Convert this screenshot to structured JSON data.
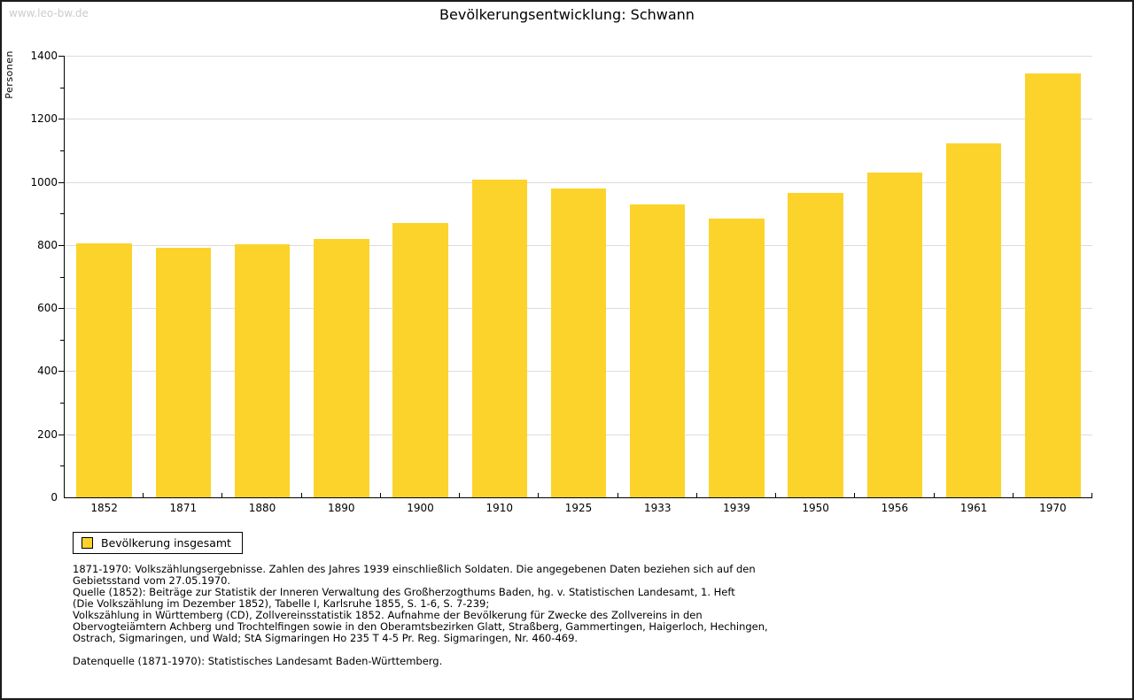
{
  "watermark": "www.leo-bw.de",
  "colors": {
    "bar_fill": "#fcd32b",
    "gridline": "#dcdcdc",
    "axis": "#000000",
    "watermark_text": "#cccccc"
  },
  "chart_data": {
    "type": "bar",
    "title": "Bevölkerungsentwicklung: Schwann",
    "ylabel": "Personen",
    "xlabel": "",
    "ylim": [
      0,
      1400
    ],
    "y_major_step": 200,
    "y_minor_step": 100,
    "grid": true,
    "legend_position": "bottom-left",
    "categories": [
      "1852",
      "1871",
      "1880",
      "1890",
      "1900",
      "1910",
      "1925",
      "1933",
      "1939",
      "1950",
      "1956",
      "1961",
      "1970"
    ],
    "series": [
      {
        "name": "Bevölkerung insgesamt",
        "color": "#fcd32b",
        "values": [
          806,
          792,
          803,
          819,
          870,
          1008,
          978,
          928,
          884,
          966,
          1031,
          1122,
          1345
        ]
      }
    ]
  },
  "footnotes": {
    "lines": [
      "1871-1970: Volkszählungsergebnisse. Zahlen des Jahres 1939 einschließlich Soldaten. Die angegebenen Daten beziehen sich auf den",
      "Gebietsstand vom 27.05.1970.",
      "Quelle (1852): Beiträge zur Statistik der Inneren Verwaltung des Großherzogthums Baden, hg. v. Statistischen Landesamt, 1. Heft",
      "(Die Volkszählung im Dezember 1852), Tabelle I, Karlsruhe 1855, S. 1-6, S. 7-239;",
      "Volkszählung in Württemberg (CD), Zollvereinsstatistik 1852. Aufnahme der Bevölkerung für Zwecke des Zollvereins in den",
      "Obervogteiämtern Achberg und Trochtelfingen sowie in den Oberamtsbezirken Glatt, Straßberg, Gammertingen, Haigerloch, Hechingen,",
      "Ostrach, Sigmaringen, und Wald; StA Sigmaringen Ho 235 T 4-5 Pr. Reg. Sigmaringen, Nr. 460-469."
    ],
    "datasource": "Datenquelle (1871-1970): Statistisches Landesamt Baden-Württemberg."
  }
}
